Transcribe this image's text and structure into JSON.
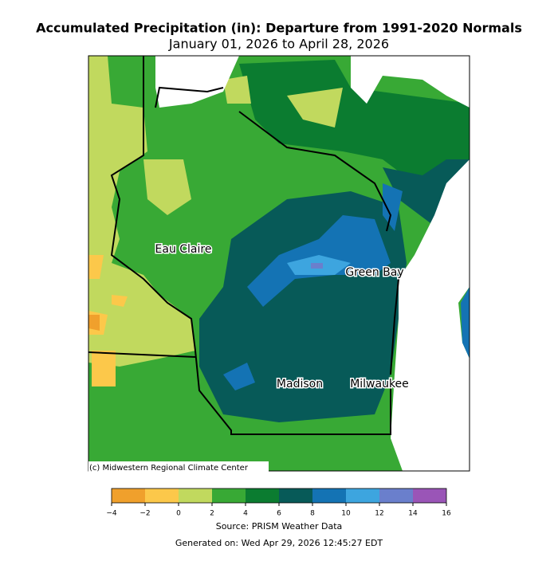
{
  "header": {
    "title": "Accumulated Precipitation (in): Departure from 1991-2020 Normals",
    "subtitle": "January 01, 2026 to April 28, 2026"
  },
  "map": {
    "cities": [
      "Eau Claire",
      "Green Bay",
      "Madison",
      "Milwaukee"
    ],
    "credit": "(c) Midwestern Regional Climate Center"
  },
  "colorbar": {
    "ticks": [
      {
        "value": -4,
        "label": "−4"
      },
      {
        "value": -2,
        "label": "−2"
      },
      0,
      2,
      4,
      6,
      8,
      10,
      12,
      14,
      16
    ],
    "colors": [
      "#f0a02c",
      "#fcc84a",
      "#c1d95e",
      "#38a935",
      "#0b7c30",
      "#075a58",
      "#1473b4",
      "#3da5df",
      "#6a7fcc",
      "#9a55b7"
    ]
  },
  "footer": {
    "source": "Source: PRISM Weather Data",
    "generated": "Generated on: Wed Apr 29, 2026 12:45:27 EDT"
  }
}
